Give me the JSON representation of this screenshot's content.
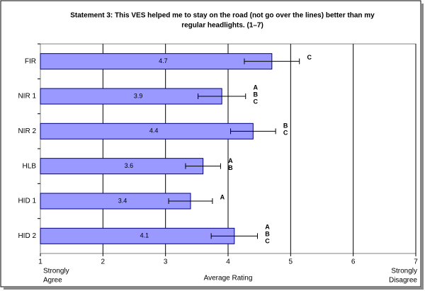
{
  "chart_data": {
    "type": "hbar",
    "title": [
      "Statement 3: This VES helped me to stay on the road (not go over the lines) better than my",
      "regular headlights. (1–7)"
    ],
    "categories": [
      "FIR",
      "NIR 1",
      "NIR 2",
      "HLB",
      "HID 1",
      "HID 2"
    ],
    "values": [
      4.7,
      3.9,
      4.4,
      3.6,
      3.4,
      4.1
    ],
    "errors": [
      0.44,
      0.38,
      0.36,
      0.28,
      0.35,
      0.37
    ],
    "letters": [
      [
        "C"
      ],
      [
        "A",
        "B",
        "C"
      ],
      [
        "B",
        "C"
      ],
      [
        "A",
        "B"
      ],
      [
        "A"
      ],
      [
        "A",
        "B",
        "C"
      ]
    ],
    "color": "#9999ff",
    "xlim": [
      1,
      7
    ],
    "xticks": [
      1,
      2,
      3,
      4,
      5,
      6,
      7
    ],
    "xlabel": "Average Rating",
    "left_label": [
      "Strongly",
      "Agree"
    ],
    "right_label": [
      "Strongly",
      "Disagree"
    ],
    "grid": true
  }
}
